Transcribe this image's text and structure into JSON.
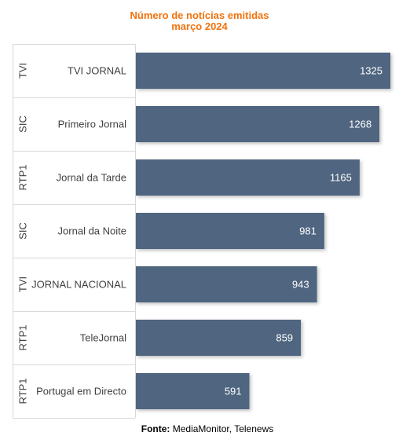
{
  "chart_data": {
    "type": "bar",
    "orientation": "horizontal",
    "title": "Número de notícias emitidas",
    "subtitle": "março 2024",
    "categories": [
      "TVI JORNAL",
      "Primeiro Jornal",
      "Jornal da Tarde",
      "Jornal da Noite",
      "JORNAL NACIONAL",
      "TeleJornal",
      "Portugal em Directo"
    ],
    "groups": [
      "TVI",
      "SIC",
      "RTP1",
      "SIC",
      "TVI",
      "RTP1",
      "RTP1"
    ],
    "values": [
      1325,
      1268,
      1165,
      981,
      943,
      859,
      591
    ],
    "xlim": [
      0,
      1325
    ],
    "grid": false,
    "legend": "none"
  },
  "colors": {
    "bar": "#4f6580",
    "title": "#f0730f",
    "value_label": "#ffffff",
    "divider": "#d9d9d9"
  },
  "source": {
    "label": "Fonte:",
    "text": "MediaMonitor, Telenews"
  }
}
